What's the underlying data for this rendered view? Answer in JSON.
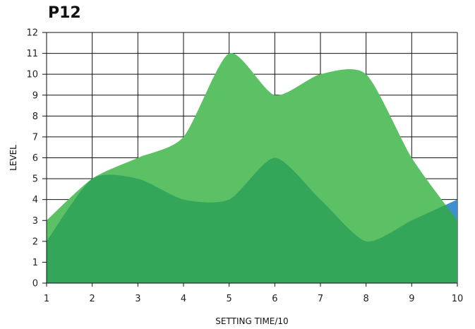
{
  "chart_data": {
    "type": "area",
    "title": "P12",
    "xlabel": "SETTING TIME/10",
    "ylabel": "LEVEL",
    "x": [
      1,
      2,
      3,
      4,
      5,
      6,
      7,
      8,
      9,
      10
    ],
    "xlim": [
      1,
      10
    ],
    "ylim": [
      0,
      12
    ],
    "grid": true,
    "series": [
      {
        "color": "#3d8fcf",
        "values": [
          2,
          5,
          5,
          4,
          4,
          6,
          4,
          2,
          3,
          4
        ]
      },
      {
        "color": "#5cc064",
        "values": [
          3,
          5,
          6,
          7,
          11,
          9,
          10,
          10,
          6,
          3
        ]
      }
    ],
    "overlap_color": "#34a65a"
  }
}
